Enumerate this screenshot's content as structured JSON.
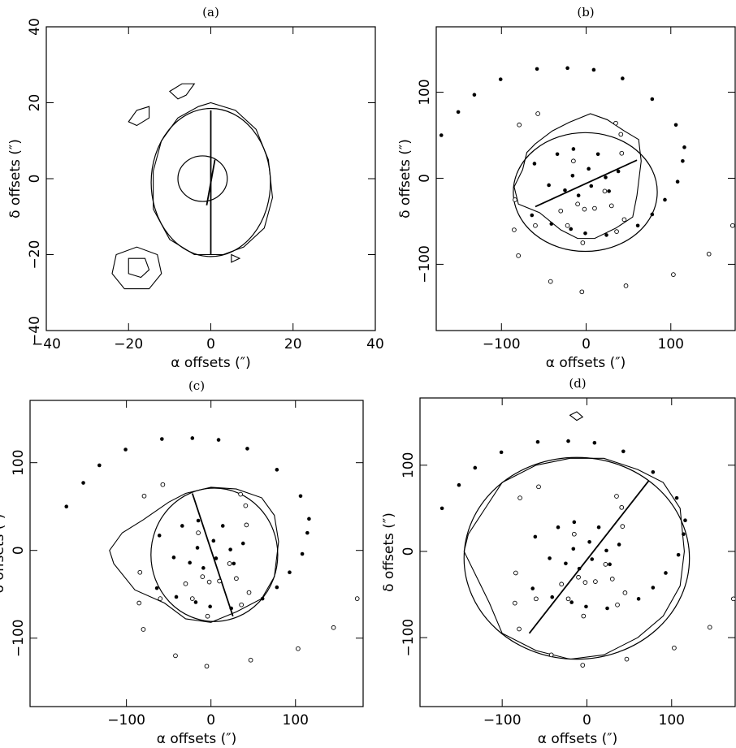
{
  "chart_data": [
    {
      "type": "scatter",
      "title": "(a)",
      "x_label": "α  offsets (″)",
      "y_label": "δ  offsets (″)",
      "xlim": [
        -40,
        40
      ],
      "ylim": [
        -40,
        40
      ],
      "xticks": [
        {
          "value": -40,
          "label": "−40"
        },
        {
          "value": -20,
          "label": "−20"
        },
        0,
        20,
        40
      ],
      "yticks": [
        {
          "value": -40,
          "label": "−40"
        },
        {
          "value": -20,
          "label": "−20"
        },
        0,
        20,
        40
      ],
      "ellipses": [
        {
          "cx": 0,
          "cy": -1,
          "rx": 14.5,
          "ry": 19.5
        },
        {
          "cx": -2,
          "cy": 0,
          "rx": 6,
          "ry": 6
        }
      ],
      "lines": [
        {
          "x": [
            0,
            0
          ],
          "y": [
            18,
            -20
          ]
        },
        {
          "x": [
            -1,
            1
          ],
          "y": [
            -7,
            5
          ]
        }
      ],
      "contours": [
        {
          "x": [
            0,
            6,
            11,
            14,
            15,
            13,
            8,
            3,
            -4,
            -10,
            -14,
            -14,
            -12,
            -8,
            -3
          ],
          "y": [
            20,
            18,
            13,
            5,
            -5,
            -13,
            -18,
            -20,
            -20,
            -16,
            -8,
            2,
            10,
            16,
            19
          ]
        },
        {
          "x": [
            -23,
            -18,
            -13,
            -12,
            -15,
            -21,
            -24
          ],
          "y": [
            -20,
            -18,
            -20,
            -25,
            -29,
            -29,
            -25
          ]
        },
        {
          "x": [
            -20,
            -16,
            -15,
            -17,
            -20
          ],
          "y": [
            -21,
            -21,
            -24,
            -26,
            -25
          ]
        },
        {
          "x": [
            -20,
            -18,
            -15,
            -15,
            -18
          ],
          "y": [
            15,
            18,
            19,
            16,
            14
          ]
        },
        {
          "x": [
            -10,
            -7,
            -4,
            -6,
            -8
          ],
          "y": [
            23,
            25,
            25,
            22,
            21
          ]
        },
        {
          "x": [
            5,
            7,
            5
          ],
          "y": [
            -20,
            -21,
            -22
          ]
        }
      ]
    },
    {
      "type": "scatter",
      "title": "(b)",
      "x_label": "α  offsets (″)",
      "y_label": "δ  offsets (″)",
      "xlim": [
        -177,
        176
      ],
      "ylim": [
        -177,
        176
      ],
      "xticks": [
        {
          "value": -100,
          "label": "−100"
        },
        0,
        100
      ],
      "yticks": [
        {
          "value": -100,
          "label": "−100"
        },
        0,
        100
      ],
      "ellipses": [
        {
          "cx": -1,
          "cy": -16,
          "rx": 85,
          "ry": 69
        }
      ],
      "lines": [
        {
          "x": [
            -60,
            60
          ],
          "y": [
            -33,
            21
          ]
        }
      ],
      "contours": [
        {
          "x": [
            -60,
            -40,
            -20,
            5,
            25,
            45,
            62,
            65,
            60,
            55,
            35,
            10,
            -10,
            -30,
            -55,
            -80,
            -85,
            -75,
            -70
          ],
          "y": [
            40,
            55,
            65,
            75,
            68,
            55,
            45,
            20,
            -20,
            -45,
            -58,
            -70,
            -70,
            -60,
            -40,
            -30,
            -10,
            10,
            30
          ]
        }
      ],
      "filled": {
        "x": [
          -171,
          -151,
          -132,
          -101,
          -58,
          -22,
          9,
          43,
          78,
          106,
          116,
          114,
          108,
          93,
          78,
          61,
          -34,
          -15,
          14,
          -61,
          3,
          -16,
          38,
          -44,
          23,
          6,
          -25,
          27,
          -9,
          -64,
          -41,
          -18,
          -1,
          24
        ],
        "y": [
          50,
          77,
          97,
          115,
          127,
          128,
          126,
          116,
          92,
          62,
          36,
          20,
          -4,
          -25,
          -42,
          -55,
          28,
          34,
          28,
          17,
          11,
          3,
          8,
          -8,
          1,
          -9,
          -14,
          -15,
          -20,
          -43,
          -53,
          -59,
          -64,
          -66
        ]
      },
      "open": {
        "x": [
          -79,
          -57,
          35,
          41,
          42,
          -15,
          -84,
          -60,
          -22,
          -4,
          45,
          36,
          -10,
          10,
          30,
          -30,
          -85,
          -80,
          -42,
          -5,
          47,
          103,
          145,
          173,
          22,
          -2
        ],
        "y": [
          62,
          75,
          64,
          51,
          29,
          20,
          -25,
          -55,
          -55,
          -75,
          -48,
          -62,
          -30,
          -35,
          -32,
          -38,
          -60,
          -90,
          -120,
          -132,
          -125,
          -112,
          -88,
          -55,
          -15,
          -36
        ]
      }
    },
    {
      "type": "scatter",
      "title": "(c)",
      "x_label": "α  offsets (″)",
      "y_label": "δ  offsets (″)",
      "xlim": [
        -214,
        180
      ],
      "ylim": [
        -178,
        171
      ],
      "xticks": [
        {
          "value": -100,
          "label": "−100"
        },
        0,
        100
      ],
      "yticks": [
        {
          "value": -100,
          "label": "−100"
        },
        0,
        100
      ],
      "ellipses": [
        {
          "cx": 4,
          "cy": -5,
          "rx": 75,
          "ry": 76
        }
      ],
      "lines": [
        {
          "x": [
            -22,
            26
          ],
          "y": [
            65,
            -75
          ]
        }
      ],
      "contours": [
        {
          "x": [
            -50,
            -30,
            0,
            30,
            60,
            75,
            80,
            75,
            60,
            30,
            0,
            -30,
            -55,
            -90,
            -115,
            -120,
            -105,
            -80
          ],
          "y": [
            55,
            65,
            72,
            70,
            60,
            40,
            10,
            -30,
            -55,
            -70,
            -82,
            -78,
            -60,
            -45,
            -15,
            0,
            20,
            35
          ]
        }
      ],
      "filled": {
        "x": [
          -171,
          -151,
          -132,
          -101,
          -58,
          -22,
          9,
          43,
          78,
          106,
          116,
          114,
          108,
          93,
          78,
          61,
          -34,
          -15,
          14,
          -61,
          3,
          -16,
          38,
          -44,
          23,
          6,
          -25,
          27,
          -9,
          -64,
          -41,
          -18,
          -1,
          24
        ],
        "y": [
          50,
          77,
          97,
          115,
          127,
          128,
          126,
          116,
          92,
          62,
          36,
          20,
          -4,
          -25,
          -42,
          -55,
          28,
          34,
          28,
          17,
          11,
          3,
          8,
          -8,
          1,
          -9,
          -14,
          -15,
          -20,
          -43,
          -53,
          -59,
          -64,
          -66
        ]
      },
      "open": {
        "x": [
          -79,
          -57,
          35,
          41,
          42,
          -15,
          -84,
          -60,
          -22,
          -4,
          45,
          36,
          -10,
          10,
          30,
          -30,
          -85,
          -80,
          -42,
          -5,
          47,
          103,
          145,
          173,
          22,
          -2
        ],
        "y": [
          62,
          75,
          64,
          51,
          29,
          20,
          -25,
          -55,
          -55,
          -75,
          -48,
          -62,
          -30,
          -35,
          -32,
          -38,
          -60,
          -90,
          -120,
          -132,
          -125,
          -112,
          -88,
          -55,
          -15,
          -36
        ]
      }
    },
    {
      "type": "scatter",
      "title": "(d)",
      "x_label": "α  offsets (″)",
      "y_label": "δ  offsets (″)",
      "xlim": [
        -197,
        175
      ],
      "ylim": [
        -180,
        178
      ],
      "xticks": [
        {
          "value": -100,
          "label": "−100"
        },
        0,
        100
      ],
      "yticks": [
        {
          "value": -100,
          "label": "−100"
        },
        0,
        100
      ],
      "ellipses": [
        {
          "cx": -12,
          "cy": -8,
          "rx": 133,
          "ry": 117
        }
      ],
      "lines": [
        {
          "x": [
            -68,
            73
          ],
          "y": [
            -95,
            82
          ]
        }
      ],
      "contours": [
        {
          "x": [
            -100,
            -60,
            -20,
            20,
            60,
            90,
            110,
            115,
            110,
            90,
            60,
            20,
            -20,
            -60,
            -100,
            -115,
            -130,
            -145,
            -140,
            -120
          ],
          "y": [
            80,
            100,
            108,
            108,
            95,
            80,
            50,
            0,
            -40,
            -75,
            -100,
            -120,
            -125,
            -115,
            -95,
            -60,
            -30,
            0,
            20,
            50
          ]
        },
        {
          "x": [
            -20,
            -12,
            -5,
            -12
          ],
          "y": [
            158,
            162,
            156,
            152
          ]
        }
      ],
      "filled": {
        "x": [
          -171,
          -151,
          -132,
          -101,
          -58,
          -22,
          9,
          43,
          78,
          106,
          116,
          114,
          108,
          93,
          78,
          61,
          -34,
          -15,
          14,
          -61,
          3,
          -16,
          38,
          -44,
          23,
          6,
          -25,
          27,
          -9,
          -64,
          -41,
          -18,
          -1,
          24
        ],
        "y": [
          50,
          77,
          97,
          115,
          127,
          128,
          126,
          116,
          92,
          62,
          36,
          20,
          -4,
          -25,
          -42,
          -55,
          28,
          34,
          28,
          17,
          11,
          3,
          8,
          -8,
          1,
          -9,
          -14,
          -15,
          -20,
          -43,
          -53,
          -59,
          -64,
          -66
        ]
      },
      "open": {
        "x": [
          -79,
          -57,
          35,
          41,
          42,
          -15,
          -84,
          -60,
          -22,
          -4,
          45,
          36,
          -10,
          10,
          30,
          -30,
          -85,
          -80,
          -42,
          -5,
          47,
          103,
          145,
          173,
          22,
          -2
        ],
        "y": [
          62,
          75,
          64,
          51,
          29,
          20,
          -25,
          -55,
          -55,
          -75,
          -48,
          -62,
          -30,
          -35,
          -32,
          -38,
          -60,
          -90,
          -120,
          -132,
          -125,
          -112,
          -88,
          -55,
          -15,
          -36
        ]
      }
    }
  ]
}
